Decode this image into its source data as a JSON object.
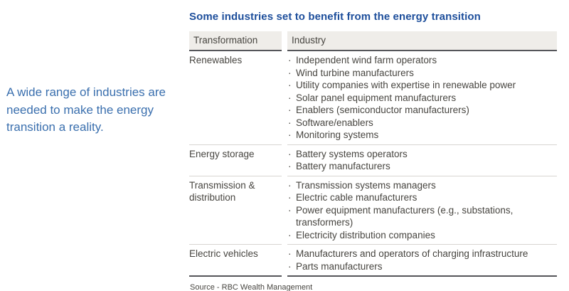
{
  "colors": {
    "title-blue": "#1d4e9b",
    "sidebar-blue": "#3a6fae",
    "text": "#474540",
    "header-bg": "#efede9",
    "border-dark": "#55565a",
    "border-light": "#d7d5d1",
    "page-bg": "#ffffff"
  },
  "sidebar": {
    "text": "A wide range of industries are needed to make the energy transition a reality."
  },
  "table": {
    "title": "Some industries set to benefit from the energy transition",
    "bullet_char": "·",
    "columns": [
      "Transformation",
      "Industry"
    ],
    "rows": [
      {
        "transformation": "Renewables",
        "industries": [
          "Independent wind farm operators",
          "Wind turbine manufacturers",
          "Utility companies with expertise in renewable power",
          "Solar panel equipment manufacturers",
          "Enablers (semiconductor manufacturers)",
          "Software/enablers",
          "Monitoring systems"
        ]
      },
      {
        "transformation": "Energy storage",
        "industries": [
          "Battery systems operators",
          "Battery manufacturers"
        ]
      },
      {
        "transformation": "Transmission & distribution",
        "industries": [
          "Transmission systems managers",
          "Electric cable manufacturers",
          "Power equipment manufacturers (e.g., substations, transformers)",
          "Electricity distribution companies"
        ]
      },
      {
        "transformation": "Electric vehicles",
        "industries": [
          "Manufacturers and operators of charging infrastructure",
          "Parts manufacturers"
        ]
      }
    ],
    "source": "Source - RBC Wealth Management"
  }
}
